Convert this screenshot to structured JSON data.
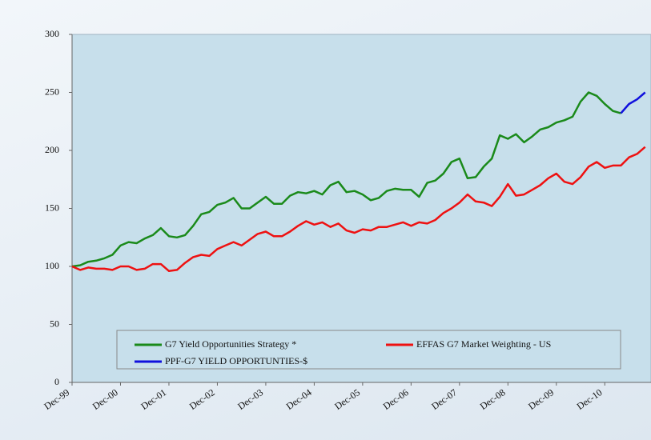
{
  "chart_data": {
    "type": "line",
    "categories": [
      "Dec-99",
      null,
      null,
      null,
      null,
      null,
      "Dec-00",
      null,
      null,
      null,
      null,
      null,
      "Dec-01",
      null,
      null,
      null,
      null,
      null,
      "Dec-02",
      null,
      null,
      null,
      null,
      null,
      "Dec-03",
      null,
      null,
      null,
      null,
      null,
      "Dec-04",
      null,
      null,
      null,
      null,
      null,
      "Dec-05",
      null,
      null,
      null,
      null,
      null,
      "Dec-06",
      null,
      null,
      null,
      null,
      null,
      "Dec-07",
      null,
      null,
      null,
      null,
      null,
      "Dec-08",
      null,
      null,
      null,
      null,
      null,
      "Dec-09",
      null,
      null,
      null,
      null,
      null,
      "Dec-10",
      null,
      null,
      null,
      null,
      null
    ],
    "series": [
      {
        "name": "G7 Yield Opportunities Strategy *",
        "color": "#1a8a1a",
        "values": [
          100,
          101,
          104,
          105,
          107,
          110,
          118,
          121,
          120,
          124,
          127,
          133,
          126,
          125,
          127,
          135,
          145,
          147,
          153,
          155,
          159,
          150,
          150,
          155,
          160,
          154,
          154,
          161,
          164,
          163,
          165,
          162,
          170,
          173,
          164,
          165,
          162,
          157,
          159,
          165,
          167,
          166,
          166,
          160,
          172,
          174,
          180,
          190,
          193,
          176,
          177,
          186,
          193,
          213,
          210,
          214,
          207,
          212,
          218,
          220,
          224,
          226,
          229,
          242,
          250,
          247,
          240,
          234,
          232,
          null,
          null,
          null
        ]
      },
      {
        "name": "EFFAS G7 Market Weighting - US",
        "color": "#ee1111",
        "values": [
          100,
          97,
          99,
          98,
          98,
          97,
          100,
          100,
          97,
          98,
          102,
          102,
          96,
          97,
          103,
          108,
          110,
          109,
          115,
          118,
          121,
          118,
          123,
          128,
          130,
          126,
          126,
          130,
          135,
          139,
          136,
          138,
          134,
          137,
          131,
          129,
          132,
          131,
          134,
          134,
          136,
          138,
          135,
          138,
          137,
          140,
          146,
          150,
          155,
          162,
          156,
          155,
          152,
          160,
          171,
          161,
          162,
          166,
          170,
          176,
          180,
          173,
          171,
          177,
          186,
          190,
          185,
          187,
          187,
          194,
          197,
          203
        ]
      },
      {
        "name": "PPF-G7 YIELD OPPORTUNTIES-$",
        "color": "#1010dd",
        "values": [
          null,
          null,
          null,
          null,
          null,
          null,
          null,
          null,
          null,
          null,
          null,
          null,
          null,
          null,
          null,
          null,
          null,
          null,
          null,
          null,
          null,
          null,
          null,
          null,
          null,
          null,
          null,
          null,
          null,
          null,
          null,
          null,
          null,
          null,
          null,
          null,
          null,
          null,
          null,
          null,
          null,
          null,
          null,
          null,
          null,
          null,
          null,
          null,
          null,
          null,
          null,
          null,
          null,
          null,
          null,
          null,
          null,
          null,
          null,
          null,
          null,
          null,
          null,
          null,
          null,
          null,
          null,
          null,
          232,
          240,
          244,
          250
        ]
      }
    ],
    "ylim": [
      0,
      300
    ],
    "yticks": [
      0,
      50,
      100,
      150,
      200,
      250,
      300
    ],
    "grid": false
  }
}
